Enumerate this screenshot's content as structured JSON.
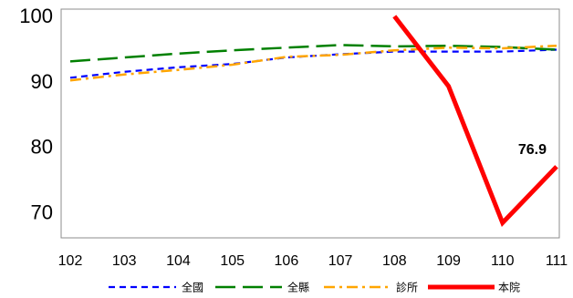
{
  "chart_data": {
    "type": "line",
    "title": "",
    "xlabel": "",
    "ylabel": "",
    "categories": [
      "102",
      "103",
      "104",
      "105",
      "106",
      "107",
      "108",
      "109",
      "110",
      "111"
    ],
    "y_ticks": [
      "100",
      "90",
      "80",
      "70"
    ],
    "ylim": [
      66,
      101
    ],
    "grid": false,
    "legend": "bottom",
    "series": [
      {
        "name": "全國",
        "color": "#0000ff",
        "dash": "dashed",
        "values": [
          90.5,
          91.4,
          92.1,
          92.6,
          93.6,
          94.1,
          94.5,
          94.5,
          94.5,
          94.8
        ]
      },
      {
        "name": "全縣",
        "color": "#008000",
        "dash": "long-dash",
        "values": [
          93.0,
          93.6,
          94.2,
          94.7,
          95.1,
          95.5,
          95.3,
          95.4,
          95.2,
          94.8
        ]
      },
      {
        "name": "診所",
        "color": "#ffa500",
        "dash": "dash-dot",
        "values": [
          90.1,
          91.0,
          91.7,
          92.5,
          93.7,
          94.0,
          94.7,
          95.1,
          95.0,
          95.4
        ]
      },
      {
        "name": "本院",
        "color": "#ff0000",
        "dash": "solid",
        "values": [
          null,
          null,
          null,
          null,
          null,
          null,
          99.9,
          89.2,
          68.3,
          76.9
        ]
      }
    ],
    "data_labels": [
      {
        "series": 3,
        "index": 9,
        "text": "76.9"
      }
    ]
  }
}
